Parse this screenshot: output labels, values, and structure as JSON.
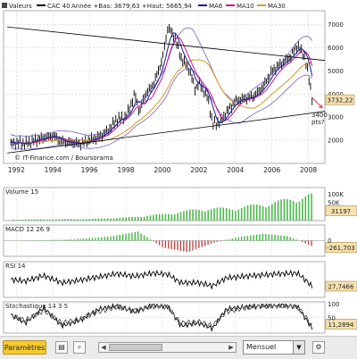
{
  "header": {
    "valeurs_label": "Valeurs",
    "instrument": "CAC 40",
    "range_text": "Année +Bas: 3679,63 +Haut: 5665,94",
    "ma_items": [
      "MA6",
      "MA10",
      "MA30"
    ]
  },
  "colors": {
    "background": "#ffffff",
    "plot_bg": "#ffffff",
    "grid": "#cfcfcf",
    "price": "#000000",
    "ma6": "#1a1aa0",
    "ma10": "#c71a8c",
    "ma30": "#d09a23",
    "bollinger": "#7a5fbf",
    "trend": "#000000",
    "volume": "#4db84d",
    "macd_pos": "#3db83d",
    "macd_neg": "#bb4a4a",
    "last_value_tag": "#f6e2b0",
    "annotation": "#e23a3a",
    "button": "#f6ca2c"
  },
  "watermark": "© IT-Finance.com / Boursorama",
  "annotation": {
    "line1": "3400",
    "line2": "pts?"
  },
  "toolbar": {
    "params_label": "Paramètres",
    "period_value": "Mensuel"
  },
  "chart_data": [
    {
      "type": "line",
      "title": "CAC 40",
      "subtitle": "Année +Bas: 3679,63 +Haut: 5665,94",
      "x": [
        1991.7,
        1992.0,
        1992.5,
        1993.0,
        1993.5,
        1994.0,
        1994.5,
        1995.0,
        1995.5,
        1996.0,
        1996.5,
        1997.0,
        1997.5,
        1998.0,
        1998.5,
        1998.75,
        1999.0,
        1999.5,
        2000.0,
        2000.3,
        2000.7,
        2001.0,
        2001.5,
        2001.8,
        2002.0,
        2002.5,
        2002.75,
        2003.2,
        2003.5,
        2004.0,
        2004.5,
        2005.0,
        2005.5,
        2006.0,
        2006.5,
        2007.0,
        2007.4,
        2007.8,
        2008.0,
        2008.2
      ],
      "series": [
        {
          "values": [
            1850,
            1900,
            1850,
            2000,
            2100,
            2200,
            1950,
            1900,
            1850,
            2000,
            2150,
            2400,
            2900,
            3000,
            4000,
            3200,
            3900,
            4400,
            5500,
            6900,
            6400,
            5600,
            5000,
            4200,
            4500,
            3800,
            2700,
            2800,
            3200,
            3700,
            3800,
            3900,
            4300,
            5000,
            5300,
            5600,
            6100,
            5600,
            4800,
            3850
          ]
        }
      ],
      "ylim": [
        1000,
        7600
      ],
      "y_ticks": [
        2000,
        3000,
        4000,
        5000,
        6000,
        7000
      ],
      "x_ticks": [
        1992,
        1994,
        1996,
        1998,
        2000,
        2002,
        2004,
        2006,
        2008
      ],
      "last_value": "3732,22",
      "overlays": [
        "MA6",
        "MA10",
        "MA30"
      ],
      "grid": true,
      "legend_position": "top"
    },
    {
      "type": "bar",
      "title": "Volume 15",
      "categories": [
        "1992",
        "1994",
        "1996",
        "1998",
        "2000",
        "2002",
        "2004",
        "2006",
        "2008"
      ],
      "values": [
        5000,
        6000,
        8000,
        15000,
        30000,
        55000,
        60000,
        85000,
        120000
      ],
      "y_ticks": [
        "100K",
        "50K"
      ],
      "last_value": "31197"
    },
    {
      "type": "bar",
      "title": "MACD 12 26 9",
      "values": [
        0,
        20,
        40,
        100,
        200,
        400,
        -300,
        -500,
        -100,
        150,
        300,
        200,
        -250
      ],
      "y_ticks": [
        "0"
      ],
      "last_value": "-261,703"
    },
    {
      "type": "line",
      "title": "RSI 14",
      "x": [
        1991.7,
        1992.5,
        1993.5,
        1994.5,
        1995.5,
        1996.5,
        1997.5,
        1998.5,
        1999.5,
        2000.3,
        2001.0,
        2002.0,
        2002.75,
        2003.5,
        2004.5,
        2005.5,
        2006.5,
        2007.4,
        2008.0,
        2008.2
      ],
      "series": [
        {
          "values": [
            50,
            45,
            62,
            40,
            48,
            58,
            68,
            60,
            70,
            66,
            40,
            40,
            30,
            55,
            60,
            64,
            68,
            70,
            40,
            28
          ]
        }
      ],
      "ylim": [
        0,
        100
      ],
      "last_value": "27,7466"
    },
    {
      "type": "line",
      "title": "Stochastique 14 3 5",
      "x": [
        1991.7,
        1992.5,
        1993.5,
        1994.5,
        1995.5,
        1996.5,
        1997.5,
        1998.5,
        1999.5,
        2000.3,
        2001.0,
        2002.0,
        2002.75,
        2003.5,
        2004.5,
        2005.5,
        2006.5,
        2007.4,
        2008.0,
        2008.2
      ],
      "series": [
        {
          "values": [
            60,
            30,
            85,
            20,
            40,
            80,
            92,
            70,
            95,
            90,
            20,
            30,
            10,
            80,
            88,
            92,
            95,
            90,
            30,
            11
          ]
        },
        {
          "values": [
            55,
            40,
            75,
            30,
            45,
            70,
            88,
            75,
            90,
            88,
            30,
            35,
            20,
            70,
            85,
            90,
            92,
            88,
            40,
            18
          ]
        }
      ],
      "ylim": [
        0,
        100
      ],
      "y_ticks": [
        100,
        50
      ],
      "last_value": "11,2894"
    }
  ]
}
